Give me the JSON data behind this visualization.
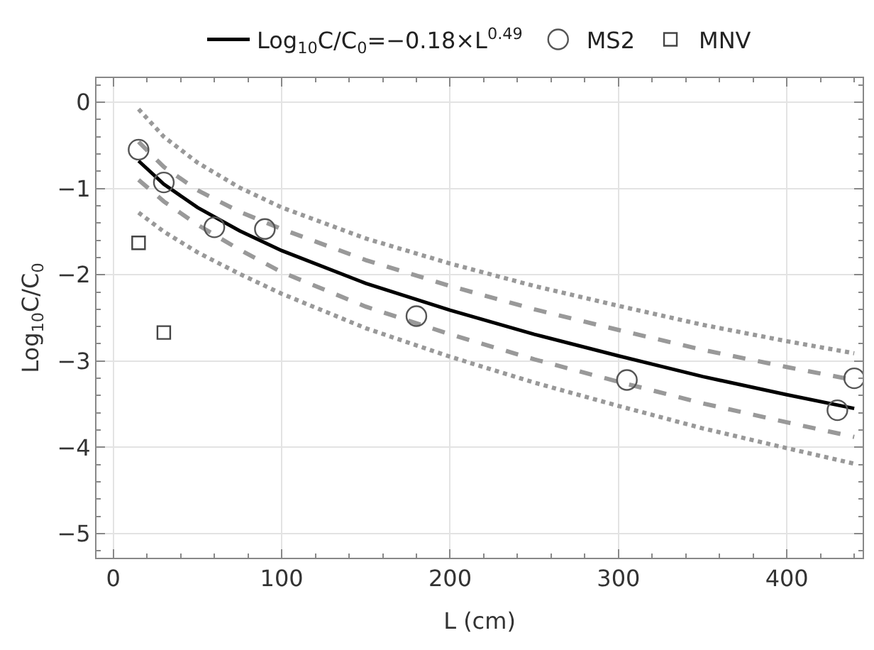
{
  "chart_data": {
    "type": "line",
    "xlabel": "L (cm)",
    "ylabel": "Log$_{10}$C/C$_{0}$",
    "xlim": [
      -10,
      445
    ],
    "ylim": [
      -5.28,
      0.28
    ],
    "xticks": [
      0,
      100,
      200,
      300,
      400
    ],
    "yticks": [
      0,
      -1,
      -2,
      -3,
      -4,
      -5
    ],
    "grid": true,
    "legend": "top",
    "series": [
      {
        "name": "Log$_{10}$C/C$_{0}$=−0.18×L$^{0.49}$",
        "line_style": "solid",
        "marker": "none",
        "color": "#000000",
        "x": [
          15,
          30,
          50,
          75,
          100,
          150,
          200,
          250,
          300,
          350,
          400,
          440
        ],
        "values": [
          -0.68,
          -0.95,
          -1.22,
          -1.49,
          -1.72,
          -2.1,
          -2.41,
          -2.69,
          -2.94,
          -3.18,
          -3.39,
          -3.55
        ]
      },
      {
        "line_style": "dashed",
        "marker": "none",
        "color": "#999999",
        "x": [
          15,
          30,
          50,
          75,
          100,
          150,
          200,
          250,
          300,
          350,
          400,
          440
        ],
        "values": [
          -0.46,
          -0.75,
          -1.02,
          -1.27,
          -1.47,
          -1.83,
          -2.13,
          -2.4,
          -2.64,
          -2.87,
          -3.07,
          -3.22
        ]
      },
      {
        "line_style": "dashed",
        "marker": "none",
        "color": "#999999",
        "x": [
          15,
          30,
          50,
          75,
          100,
          150,
          200,
          250,
          300,
          350,
          400,
          440
        ],
        "values": [
          -0.9,
          -1.15,
          -1.42,
          -1.71,
          -1.97,
          -2.37,
          -2.69,
          -2.98,
          -3.24,
          -3.49,
          -3.71,
          -3.88
        ]
      },
      {
        "line_style": "dotted",
        "marker": "none",
        "color": "#999999",
        "x": [
          15,
          30,
          50,
          75,
          100,
          150,
          200,
          250,
          300,
          350,
          400,
          440
        ],
        "values": [
          -0.08,
          -0.4,
          -0.7,
          -0.99,
          -1.22,
          -1.58,
          -1.87,
          -2.13,
          -2.36,
          -2.58,
          -2.77,
          -2.91
        ]
      },
      {
        "line_style": "dotted",
        "marker": "none",
        "color": "#999999",
        "x": [
          15,
          30,
          50,
          75,
          100,
          150,
          200,
          250,
          300,
          350,
          400,
          440
        ],
        "values": [
          -1.28,
          -1.5,
          -1.74,
          -1.99,
          -2.22,
          -2.62,
          -2.95,
          -3.25,
          -3.52,
          -3.78,
          -4.01,
          -4.19
        ]
      },
      {
        "name": "MS2",
        "type": "scatter",
        "marker": "circle",
        "color": "#555555",
        "x": [
          15,
          30,
          60,
          90,
          180,
          305,
          430,
          440
        ],
        "values": [
          -0.55,
          -0.93,
          -1.45,
          -1.47,
          -2.48,
          -3.22,
          -3.57,
          -3.2
        ]
      },
      {
        "name": "MNV",
        "type": "scatter",
        "marker": "square",
        "color": "#444444",
        "x": [
          15,
          30
        ],
        "values": [
          -1.63,
          -2.67
        ]
      }
    ]
  }
}
